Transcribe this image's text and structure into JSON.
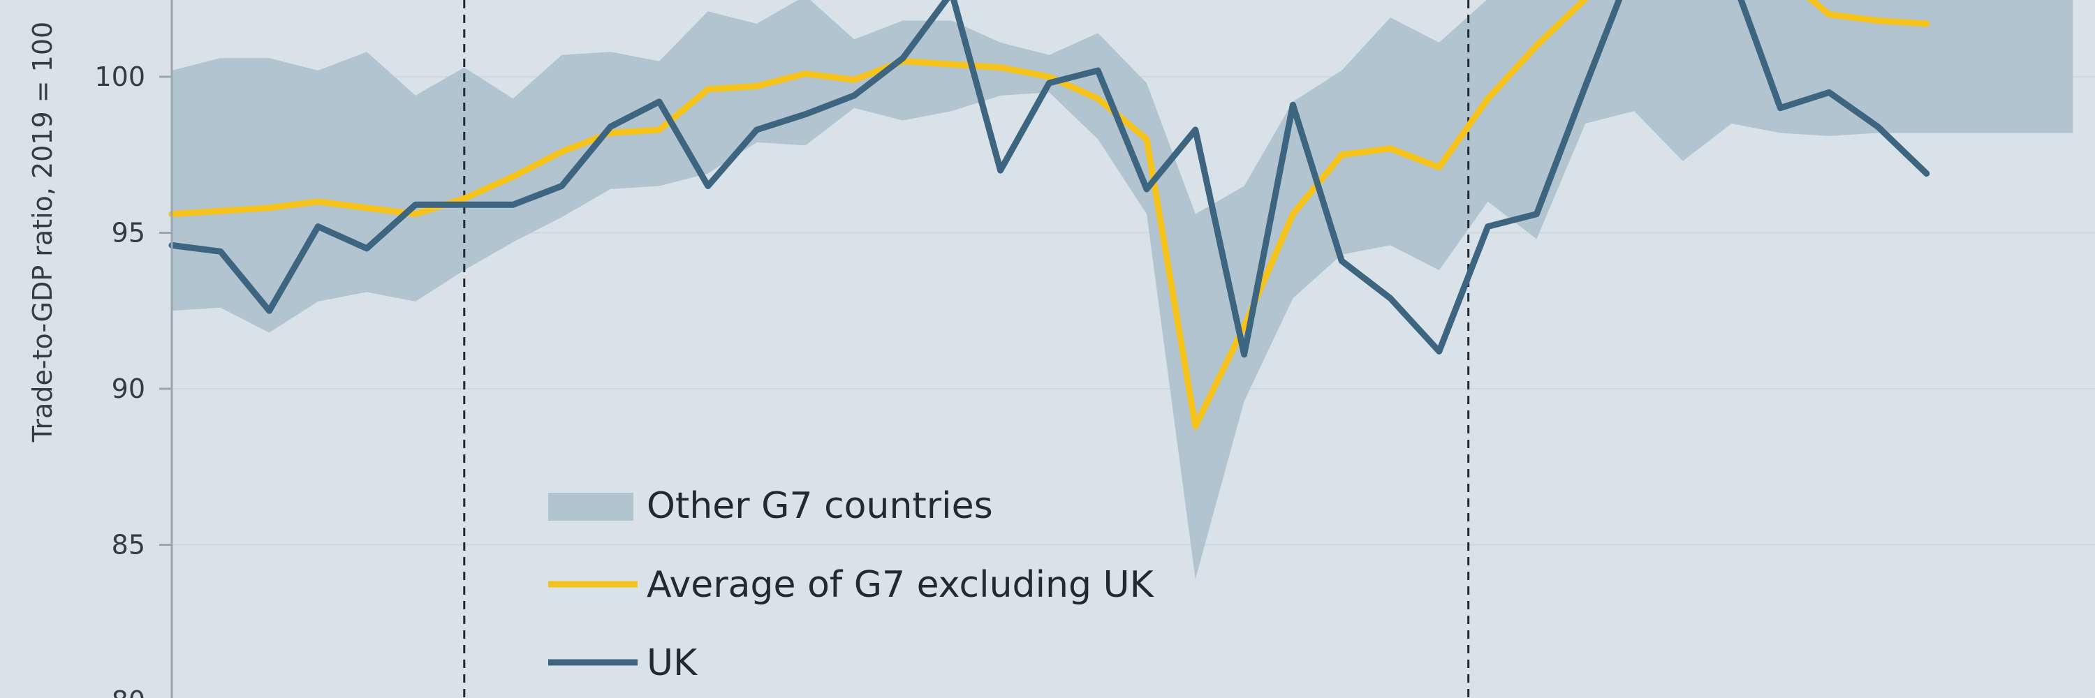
{
  "chart_data": {
    "type": "line",
    "ylabel": "Trade-to-GDP ratio, 2019 = 100",
    "ylim": [
      80,
      103.7
    ],
    "yticks": [
      80,
      85,
      90,
      95,
      100
    ],
    "grid": true,
    "legend_position": "bottom-left",
    "x": [
      0,
      1,
      2,
      3,
      4,
      5,
      6,
      7,
      8,
      9,
      10,
      11,
      12,
      13,
      14,
      15,
      16,
      17,
      18,
      19,
      20,
      21,
      22,
      23,
      24,
      25,
      26,
      27,
      28,
      29,
      30,
      31,
      32,
      33,
      34,
      35,
      36,
      37,
      38,
      39
    ],
    "vlines": [
      6.0,
      26.6
    ],
    "series": [
      {
        "name": "Other G7 countries",
        "kind": "band",
        "color": "#b3c4d1",
        "upper": [
          100.2,
          100.6,
          100.6,
          100.2,
          100.8,
          99.4,
          100.3,
          99.3,
          100.7,
          100.8,
          100.5,
          102.1,
          101.7,
          102.6,
          101.2,
          101.8,
          101.8,
          101.1,
          100.7,
          101.4,
          99.8,
          95.6,
          96.5,
          99.2,
          100.2,
          101.9,
          101.1,
          102.5,
          103.6,
          103.7,
          103.7,
          103.7,
          103.7,
          103.7,
          103.7,
          103.7,
          103.7,
          103.7,
          103.7,
          103.7
        ],
        "lower": [
          92.5,
          92.6,
          91.8,
          92.8,
          93.1,
          92.8,
          93.8,
          94.7,
          95.5,
          96.4,
          96.5,
          96.9,
          97.9,
          97.8,
          99.0,
          98.6,
          98.9,
          99.4,
          99.5,
          98.0,
          95.6,
          83.9,
          89.6,
          92.9,
          94.3,
          94.6,
          93.8,
          96.0,
          94.8,
          98.5,
          98.9,
          97.3,
          98.5,
          98.2,
          98.1,
          98.2,
          98.2,
          98.2,
          98.2,
          98.2
        ]
      },
      {
        "name": "Average of G7 excluding UK",
        "kind": "line",
        "color": "#f5c31b",
        "values": [
          95.6,
          95.7,
          95.8,
          96.0,
          95.8,
          95.6,
          96.1,
          96.8,
          97.6,
          98.2,
          98.3,
          99.6,
          99.7,
          100.1,
          99.9,
          100.5,
          100.4,
          100.3,
          100.0,
          99.3,
          98.0,
          88.8,
          92.0,
          95.6,
          97.5,
          97.7,
          97.1,
          99.3,
          101.0,
          102.5,
          103.7,
          103.7,
          103.7,
          103.3,
          102.0,
          101.8,
          101.7,
          null,
          null,
          null
        ]
      },
      {
        "name": "UK",
        "kind": "line",
        "color": "#3e6580",
        "values": [
          94.6,
          94.4,
          92.5,
          95.2,
          94.5,
          95.9,
          95.9,
          95.9,
          96.5,
          98.4,
          99.2,
          96.5,
          98.3,
          98.8,
          99.4,
          100.6,
          102.7,
          97.0,
          99.8,
          100.2,
          96.4,
          98.3,
          91.1,
          99.1,
          94.1,
          92.9,
          91.2,
          95.2,
          95.6,
          99.7,
          103.7,
          103.7,
          103.3,
          99.0,
          99.5,
          98.4,
          96.9,
          null,
          null,
          null
        ]
      }
    ]
  }
}
